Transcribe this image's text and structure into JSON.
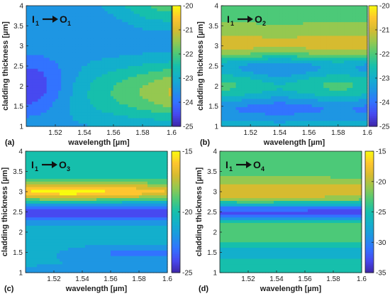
{
  "chart_data": [
    {
      "type": "heatmap",
      "panel_label": "(a)",
      "annotation": {
        "from": "I",
        "from_sub": "1",
        "to": "O",
        "to_sub": "1"
      },
      "xlabel": "wavelength [µm]",
      "ylabel": "cladding thickness [µm]",
      "xlim": [
        1.5,
        1.6
      ],
      "ylim": [
        1,
        4
      ],
      "xticks": [
        "1.52",
        "1.54",
        "1.56",
        "1.58",
        "1.6"
      ],
      "yticks": [
        "1",
        "1.5",
        "2",
        "2.5",
        "3",
        "3.5",
        "4"
      ],
      "colorbar": {
        "range": [
          -25,
          -20
        ],
        "ticks": [
          "-20",
          "-21",
          "-22",
          "-23",
          "-24",
          "-25"
        ]
      },
      "colormap": "parula",
      "features": "low values near left at thickness ~2; high values near right at thickness ~1.8; high at top-right corner"
    },
    {
      "type": "heatmap",
      "panel_label": "(b)",
      "annotation": {
        "from": "I",
        "from_sub": "1",
        "to": "O",
        "to_sub": "2"
      },
      "xlabel": "wavelength [µm]",
      "ylabel": "cladding thickness [µm]",
      "xlim": [
        1.5,
        1.6
      ],
      "ylim": [
        1,
        4
      ],
      "xticks": [
        "1.52",
        "1.54",
        "1.56",
        "1.58",
        "1.6"
      ],
      "yticks": [
        "1",
        "1.5",
        "2",
        "2.5",
        "3",
        "3.5",
        "4"
      ],
      "colorbar": {
        "range": [
          -25,
          -20
        ],
        "ticks": [
          "-20",
          "-21",
          "-22",
          "-23",
          "-24",
          "-25"
        ]
      },
      "colormap": "parula",
      "features": "horizontal bands; maximum near thickness 3.0, minimum near thickness 2.5"
    },
    {
      "type": "heatmap",
      "panel_label": "(c)",
      "annotation": {
        "from": "I",
        "from_sub": "1",
        "to": "O",
        "to_sub": "3"
      },
      "xlabel": "wavelength [µm]",
      "ylabel": "cladding thickness [µm]",
      "xlim": [
        1.5,
        1.6
      ],
      "ylim": [
        1,
        4
      ],
      "xticks": [
        "1.52",
        "1.54",
        "1.56",
        "1.58",
        "1.6"
      ],
      "yticks": [
        "1",
        "1.5",
        "2",
        "2.5",
        "3",
        "3.5",
        "4"
      ],
      "colorbar": {
        "range": [
          -25,
          -15
        ],
        "ticks": [
          "-15",
          "-20",
          "-25"
        ]
      },
      "colormap": "parula",
      "features": "bright band at thickness 3.0 peaking near 1.53; dark band near 2.5"
    },
    {
      "type": "heatmap",
      "panel_label": "(d)",
      "annotation": {
        "from": "I",
        "from_sub": "1",
        "to": "O",
        "to_sub": "4"
      },
      "xlabel": "wavelength [µm]",
      "ylabel": "cladding thickness [µm]",
      "xlim": [
        1.5,
        1.6
      ],
      "ylim": [
        1,
        4
      ],
      "xticks": [
        "1.52",
        "1.54",
        "1.56",
        "1.58",
        "1.6"
      ],
      "yticks": [
        "1",
        "1.5",
        "2",
        "2.5",
        "3",
        "3.5",
        "4"
      ],
      "colorbar": {
        "range": [
          -35,
          -15
        ],
        "ticks": [
          "-15",
          "-20",
          "-25",
          "-30",
          "-35"
        ]
      },
      "colormap": "parula",
      "features": "high band at thickness ~3.0, dark band at ~2.5, moderate band near 2.0"
    }
  ]
}
